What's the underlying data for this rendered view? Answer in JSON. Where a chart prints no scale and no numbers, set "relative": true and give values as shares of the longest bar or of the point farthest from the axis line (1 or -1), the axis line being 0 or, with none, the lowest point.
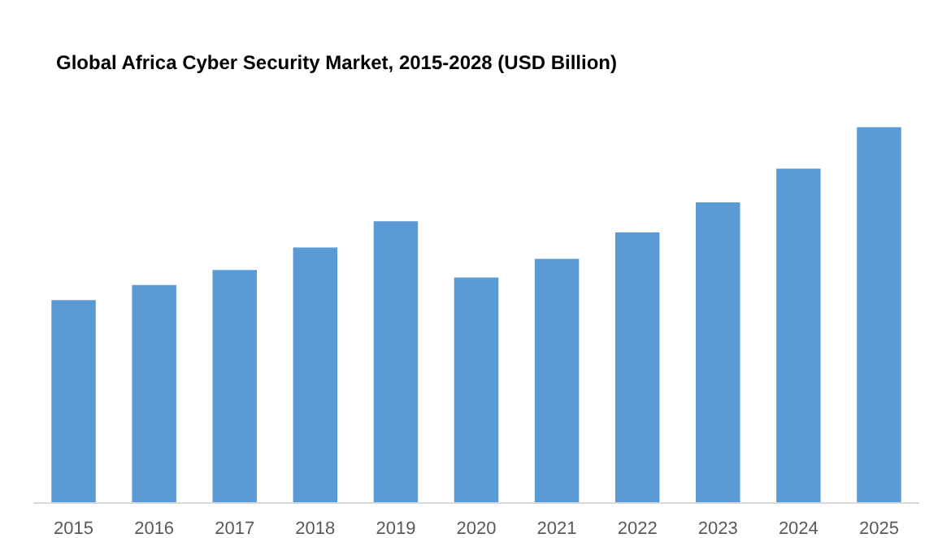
{
  "chart_data": {
    "type": "bar",
    "title": "Global Africa Cyber Security Market, 2015-2028 (USD Billion)",
    "categories": [
      "2015",
      "2016",
      "2017",
      "2018",
      "2019",
      "2020",
      "2021",
      "2022",
      "2023",
      "2024",
      "2025"
    ],
    "values": [
      0.54,
      0.58,
      0.62,
      0.68,
      0.75,
      0.6,
      0.65,
      0.72,
      0.8,
      0.89,
      1.0
    ],
    "color": "#5b9bd5",
    "relative": true,
    "grid": false
  }
}
